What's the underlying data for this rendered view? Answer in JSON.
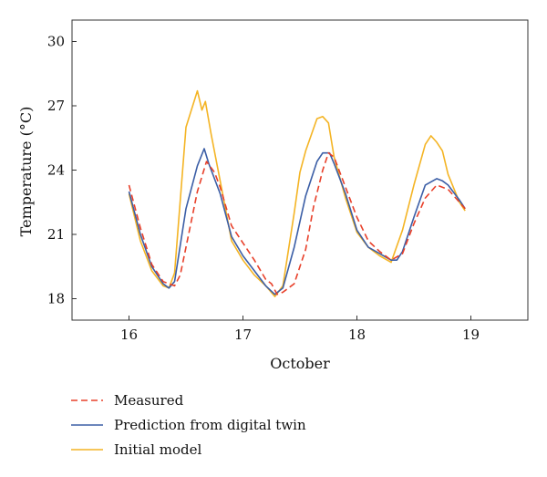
{
  "chart_data": {
    "type": "line",
    "xlabel": "October",
    "ylabel": "Temperature (°C)",
    "xlim": [
      15.5,
      19.5
    ],
    "ylim": [
      17,
      31
    ],
    "xticks": [
      16,
      17,
      18,
      19
    ],
    "yticks": [
      18,
      21,
      24,
      27,
      30
    ],
    "grid": false,
    "legend": "bottom",
    "series": [
      {
        "name": "Measured",
        "color": "#e8402a",
        "style": "dashed",
        "x": [
          16.0,
          16.1,
          16.2,
          16.3,
          16.4,
          16.45,
          16.5,
          16.6,
          16.68,
          16.75,
          16.8,
          16.9,
          17.0,
          17.1,
          17.2,
          17.25,
          17.3,
          17.35,
          17.45,
          17.55,
          17.62,
          17.7,
          17.75,
          17.8,
          17.9,
          18.0,
          18.1,
          18.2,
          18.3,
          18.4,
          18.5,
          18.6,
          18.7,
          18.8,
          18.9,
          18.95
        ],
        "y": [
          23.3,
          21.3,
          19.6,
          18.8,
          18.6,
          19.1,
          20.4,
          23.0,
          24.4,
          23.9,
          23.2,
          21.4,
          20.6,
          19.8,
          18.9,
          18.7,
          18.2,
          18.3,
          18.7,
          20.3,
          22.3,
          24.0,
          24.8,
          24.6,
          23.2,
          21.8,
          20.7,
          20.2,
          19.8,
          20.1,
          21.5,
          22.7,
          23.3,
          23.1,
          22.5,
          22.2
        ]
      },
      {
        "name": "Prediction from digital twin",
        "color": "#3b5ea6",
        "style": "solid",
        "x": [
          16.0,
          16.1,
          16.2,
          16.3,
          16.35,
          16.4,
          16.5,
          16.6,
          16.66,
          16.7,
          16.8,
          16.9,
          17.0,
          17.1,
          17.2,
          17.28,
          17.35,
          17.45,
          17.55,
          17.65,
          17.7,
          17.76,
          17.8,
          17.9,
          18.0,
          18.1,
          18.2,
          18.3,
          18.35,
          18.4,
          18.5,
          18.6,
          18.7,
          18.75,
          18.8,
          18.9,
          18.95
        ],
        "y": [
          23.0,
          21.0,
          19.5,
          18.7,
          18.5,
          18.8,
          22.2,
          24.2,
          25.0,
          24.3,
          22.9,
          20.9,
          20.0,
          19.3,
          18.6,
          18.2,
          18.5,
          20.4,
          22.8,
          24.4,
          24.8,
          24.8,
          24.3,
          22.9,
          21.2,
          20.4,
          20.1,
          19.8,
          19.8,
          20.2,
          21.8,
          23.3,
          23.6,
          23.5,
          23.3,
          22.6,
          22.2
        ]
      },
      {
        "name": "Initial model",
        "color": "#f4b424",
        "style": "solid",
        "x": [
          16.0,
          16.1,
          16.2,
          16.3,
          16.35,
          16.4,
          16.5,
          16.6,
          16.64,
          16.67,
          16.72,
          16.8,
          16.9,
          17.0,
          17.1,
          17.2,
          17.28,
          17.35,
          17.45,
          17.5,
          17.55,
          17.65,
          17.7,
          17.75,
          17.8,
          17.9,
          18.0,
          18.1,
          18.2,
          18.3,
          18.4,
          18.5,
          18.6,
          18.65,
          18.7,
          18.75,
          18.8,
          18.9,
          18.95
        ],
        "y": [
          22.9,
          20.7,
          19.3,
          18.6,
          18.5,
          19.2,
          26.0,
          27.7,
          26.8,
          27.2,
          25.7,
          23.5,
          20.7,
          19.8,
          19.1,
          18.6,
          18.1,
          18.6,
          22.0,
          23.9,
          24.9,
          26.4,
          26.5,
          26.2,
          24.6,
          22.7,
          21.1,
          20.4,
          20.0,
          19.7,
          21.2,
          23.3,
          25.2,
          25.6,
          25.3,
          24.9,
          23.8,
          22.5,
          22.1
        ]
      }
    ]
  }
}
